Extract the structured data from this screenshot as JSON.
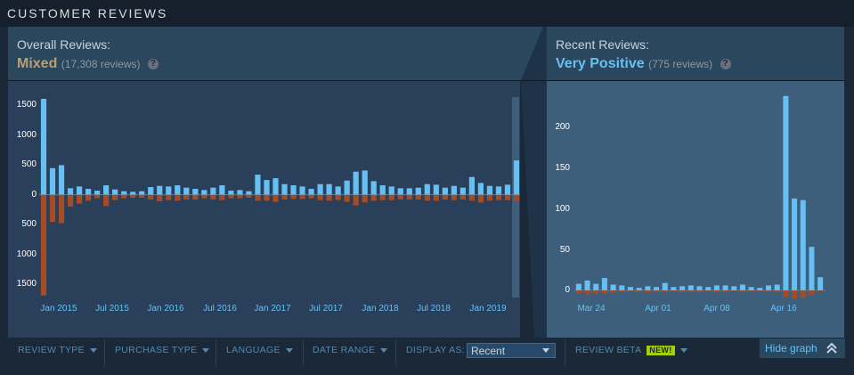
{
  "header": {
    "title": "CUSTOMER REVIEWS"
  },
  "overall": {
    "label": "Overall Reviews:",
    "rating": "Mixed",
    "count": "(17,308 reviews)",
    "help_icon": "question-icon"
  },
  "recent": {
    "label": "Recent Reviews:",
    "rating": "Very Positive",
    "count": "(775 reviews)",
    "help_icon": "question-icon"
  },
  "colors": {
    "positive": "#66c0f4",
    "negative": "#a34c25",
    "mixed": "#b9a074"
  },
  "chart_data": [
    {
      "type": "bar",
      "y_tick_labels": [
        "1500",
        "1000",
        "500",
        "0",
        "500",
        "1000",
        "1500"
      ],
      "x_tick_labels": [
        "Jan 2015",
        "Jul 2015",
        "Jan 2016",
        "Jul 2016",
        "Jan 2017",
        "Jul 2017",
        "Jan 2018",
        "Jul 2018",
        "Jan 2019"
      ],
      "ylim": [
        -1750,
        1650
      ],
      "series": [
        {
          "values": [
            1620,
            450,
            500,
            110,
            140,
            100,
            70,
            160,
            90,
            60,
            50,
            60,
            130,
            150,
            140,
            160,
            120,
            100,
            80,
            120,
            160,
            70,
            80,
            60,
            340,
            250,
            280,
            180,
            160,
            140,
            100,
            180,
            180,
            140,
            240,
            390,
            410,
            230,
            160,
            140,
            110,
            110,
            120,
            180,
            170,
            120,
            150,
            120,
            300,
            200,
            150,
            140,
            170,
            580
          ]
        },
        {
          "values": [
            -1700,
            -460,
            -480,
            -200,
            -150,
            -100,
            -60,
            -190,
            -90,
            -60,
            -50,
            -50,
            -80,
            -110,
            -90,
            -100,
            -80,
            -80,
            -60,
            -80,
            -90,
            -60,
            -60,
            -50,
            -100,
            -100,
            -120,
            -80,
            -70,
            -70,
            -60,
            -90,
            -100,
            -90,
            -120,
            -180,
            -130,
            -100,
            -90,
            -90,
            -80,
            -80,
            -80,
            -100,
            -100,
            -80,
            -90,
            -80,
            -100,
            -130,
            -100,
            -90,
            -90,
            -100
          ]
        }
      ]
    },
    {
      "type": "bar",
      "y_tick_labels": [
        "200",
        "150",
        "100",
        "50",
        "0"
      ],
      "x_tick_labels": [
        "Mar 24",
        "Apr 01",
        "Apr 08",
        "Apr 16"
      ],
      "ylim": [
        -12,
        240
      ],
      "series": [
        {
          "values": [
            8,
            12,
            8,
            15,
            7,
            6,
            4,
            3,
            5,
            4,
            9,
            4,
            5,
            6,
            5,
            4,
            6,
            6,
            5,
            7,
            4,
            3,
            6,
            7,
            237,
            112,
            110,
            53,
            16
          ]
        },
        {
          "values": [
            -4,
            -5,
            -4,
            -4,
            -3,
            -2,
            -1,
            -2,
            -3,
            -2,
            -2,
            -1,
            -2,
            -2,
            -2,
            -1,
            -2,
            -2,
            -1,
            -2,
            -1,
            -1,
            -2,
            -2,
            -8,
            -10,
            -9,
            -6,
            -1
          ]
        }
      ]
    }
  ],
  "toolbar": {
    "review_type": "REVIEW TYPE",
    "purchase_type": "PURCHASE TYPE",
    "language": "LANGUAGE",
    "date_range": "DATE RANGE",
    "display_as": "DISPLAY AS:",
    "display_value": "Recent",
    "review_beta": "REVIEW BETA",
    "new_badge": "NEW!",
    "hide_graph": "Hide graph"
  }
}
